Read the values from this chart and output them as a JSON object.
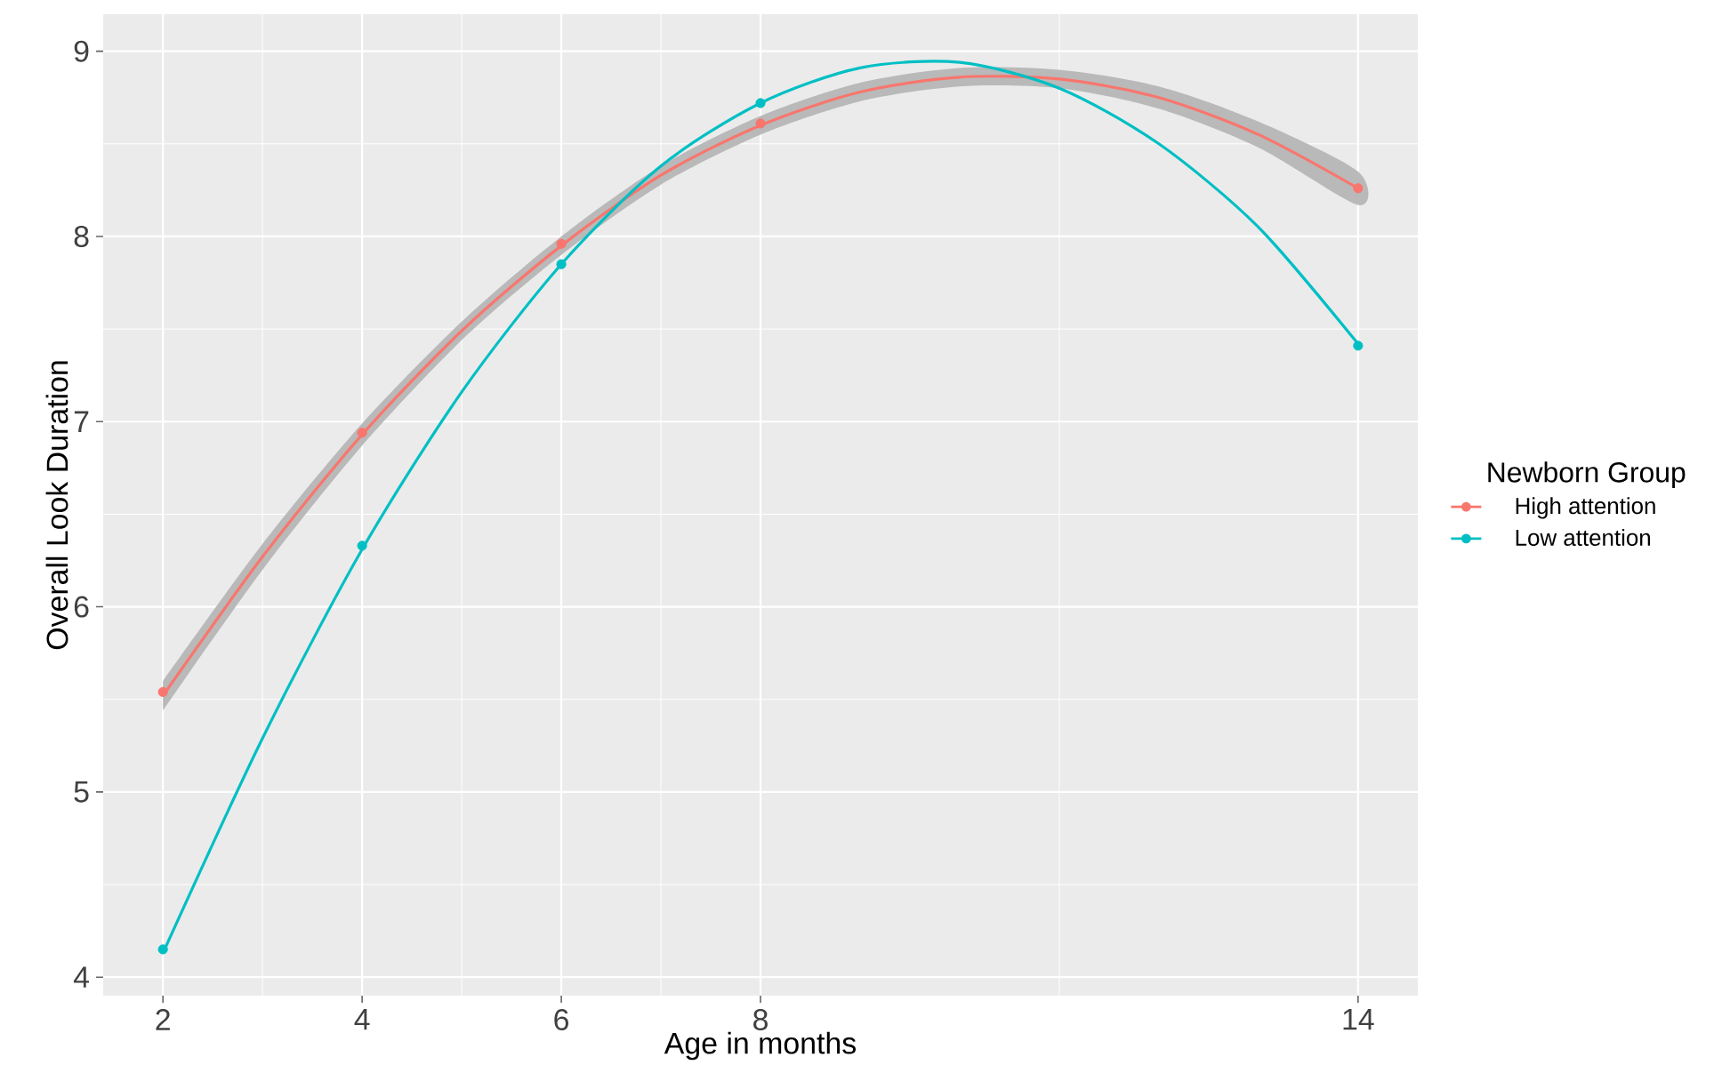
{
  "chart_data": {
    "type": "scatter",
    "xlabel": "Age in months",
    "ylabel": "Overall Look Duration",
    "legend_title": "Newborn Group",
    "xlim": [
      1.4,
      14.6
    ],
    "ylim": [
      3.9,
      9.2
    ],
    "xticks": [
      2,
      4,
      6,
      8,
      14
    ],
    "yticks": [
      4,
      5,
      6,
      7,
      8,
      9
    ],
    "grid": true,
    "legend": "right",
    "marker": "circle",
    "series": [
      {
        "name": "High attention",
        "color": "#f8766d",
        "x": [
          2,
          4,
          6,
          8,
          14
        ],
        "values": [
          5.54,
          6.94,
          7.96,
          8.61,
          8.26
        ]
      },
      {
        "name": "Low attention",
        "color": "#00bfc4",
        "x": [
          2,
          4,
          6,
          8,
          14
        ],
        "values": [
          4.15,
          6.33,
          7.85,
          8.72,
          7.41
        ]
      },
      {
        "type": "line",
        "marker": "none",
        "color": "#f8766d",
        "x": [
          2,
          3,
          4,
          5,
          6,
          7,
          8,
          9,
          10,
          11,
          12,
          13,
          14
        ],
        "values": [
          5.52,
          6.27,
          6.93,
          7.49,
          7.95,
          8.33,
          8.6,
          8.78,
          8.86,
          8.85,
          8.75,
          8.55,
          8.26
        ],
        "lower": [
          5.44,
          6.2,
          6.87,
          7.44,
          7.9,
          8.28,
          8.55,
          8.73,
          8.81,
          8.8,
          8.69,
          8.48,
          8.17
        ],
        "upper": [
          5.6,
          6.34,
          6.99,
          7.54,
          8.0,
          8.38,
          8.65,
          8.83,
          8.91,
          8.9,
          8.81,
          8.62,
          8.35
        ]
      },
      {
        "type": "line",
        "marker": "none",
        "color": "#00bfc4",
        "x": [
          2,
          3,
          4,
          5,
          6,
          7,
          8,
          9,
          10,
          11,
          12,
          13,
          14
        ],
        "values": [
          4.13,
          5.29,
          6.31,
          7.16,
          7.85,
          8.38,
          8.72,
          8.91,
          8.94,
          8.8,
          8.5,
          8.05,
          7.42
        ]
      }
    ]
  }
}
